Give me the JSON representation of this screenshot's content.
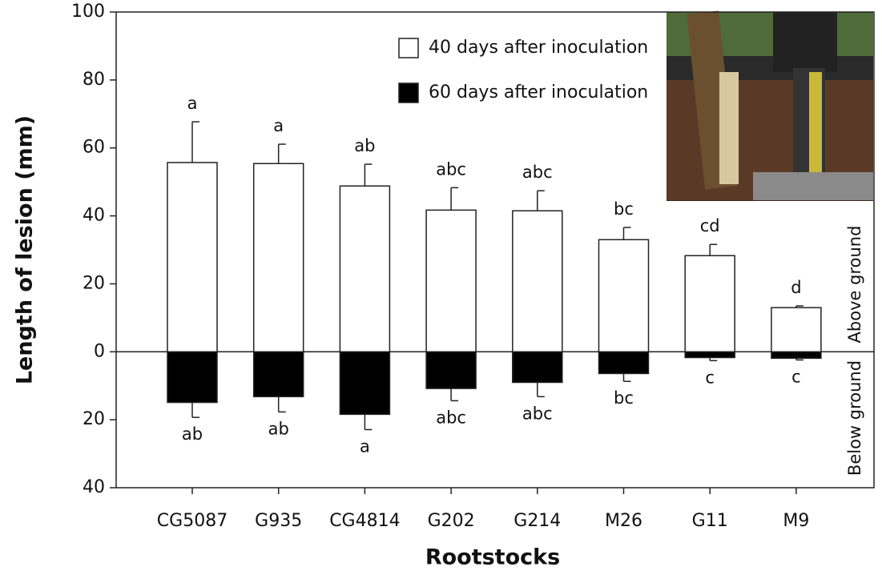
{
  "chart_data": {
    "type": "bar",
    "y_label": "Length of lesion (mm)",
    "x_label": "Rootstocks",
    "categories": [
      "CG5087",
      "G935",
      "CG4814",
      "G202",
      "G214",
      "M26",
      "G11",
      "M9"
    ],
    "series": [
      {
        "name": "40 days after inoculation",
        "color": "#ffffff",
        "values": [
          55.7,
          55.4,
          48.8,
          41.7,
          41.5,
          33,
          28.3,
          13
        ],
        "errors": [
          12,
          5.7,
          6.4,
          6.6,
          5.9,
          3.6,
          3.3,
          0.5
        ],
        "letters": [
          "a",
          "a",
          "ab",
          "abc",
          "abc",
          "bc",
          "cd",
          "d"
        ]
      },
      {
        "name": "60 days after inoculation",
        "color": "#000000",
        "values": [
          -14.9,
          -13.2,
          -18.4,
          -10.8,
          -9,
          -6.4,
          -1.7,
          -1.9
        ],
        "errors": [
          4.4,
          4.5,
          4.5,
          3.6,
          4.2,
          2.3,
          0.9,
          0.5
        ],
        "letters": [
          "ab",
          "ab",
          "a",
          "abc",
          "abc",
          "bc",
          "c",
          "c"
        ]
      }
    ],
    "side_labels": [
      "Below ground",
      "Above ground"
    ],
    "ylim": [
      -40,
      100
    ],
    "yticks": [
      {
        "value": -40,
        "label": "40"
      },
      {
        "value": -20,
        "label": "20"
      },
      0,
      20,
      40,
      60,
      80,
      100
    ]
  }
}
